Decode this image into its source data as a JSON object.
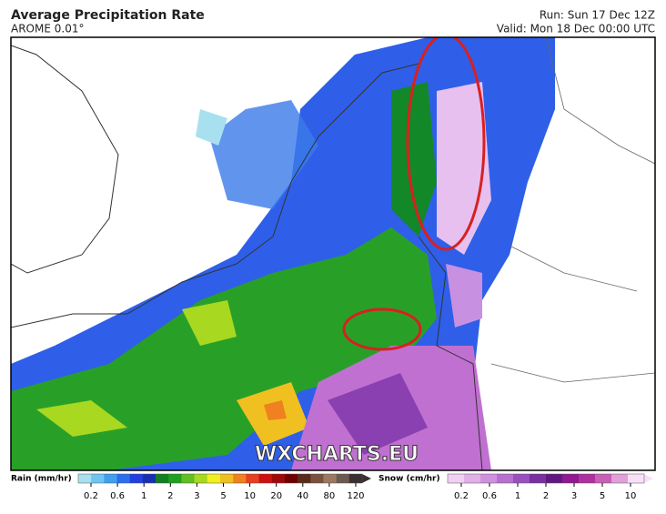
{
  "header": {
    "title": "Average Precipitation Rate",
    "model": "AROME 0.01°",
    "run": "Run: Sun 17 Dec 12Z",
    "valid": "Valid: Mon 18 Dec 00:00 UTC"
  },
  "watermark": "WXCHARTS.EU",
  "legend": {
    "rain": {
      "label": "Rain (mm/hr)",
      "ticks": [
        0.2,
        0.6,
        1,
        2,
        3,
        5,
        10,
        20,
        40,
        80,
        120
      ],
      "colors": [
        "#a8e0f0",
        "#6ec6f0",
        "#3fa0f0",
        "#2a6ef0",
        "#2040e0",
        "#1830b0",
        "#108020",
        "#20a020",
        "#60c020",
        "#a8d820",
        "#f0f020",
        "#f0c020",
        "#f08020",
        "#e84020",
        "#d01010",
        "#a00808",
        "#700000",
        "#5a2a1a",
        "#7a5040",
        "#9a7a60",
        "#6a5a50",
        "#3a3030"
      ]
    },
    "snow": {
      "label": "Snow (cm/hr)",
      "ticks": [
        0.2,
        0.6,
        1,
        2,
        3,
        5,
        10
      ],
      "colors": [
        "#f0d0f0",
        "#e0b0e8",
        "#d090e0",
        "#b870d0",
        "#9850c0",
        "#7830a0",
        "#601880",
        "#901890",
        "#b030a0",
        "#c860b8",
        "#e0a0d8",
        "#f8e0f8"
      ]
    }
  }
}
